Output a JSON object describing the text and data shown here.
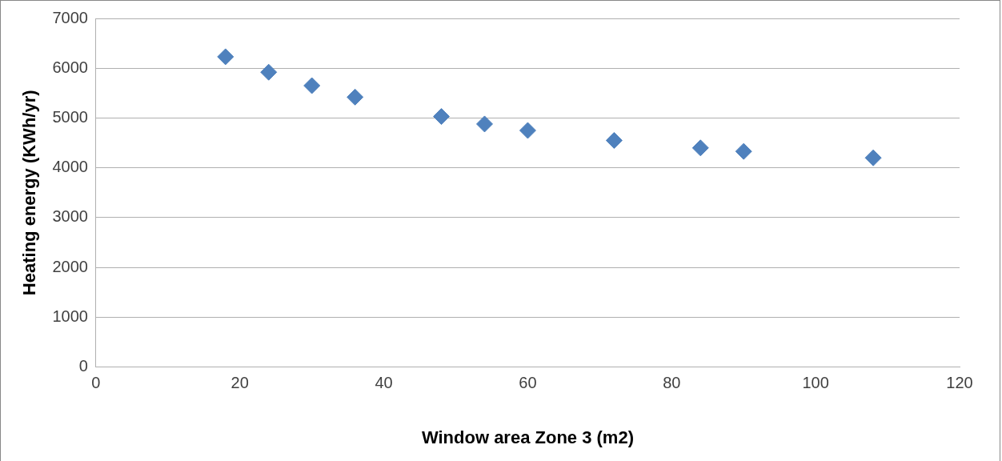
{
  "chart_data": {
    "type": "scatter",
    "xlabel": "Window area Zone 3 (m2)",
    "ylabel": "Heating energy (KWh/yr)",
    "x": [
      18,
      24,
      30,
      36,
      48,
      54,
      60,
      72,
      84,
      90,
      108
    ],
    "series": [
      {
        "color": "#4f81bd",
        "values": [
          6230,
          5920,
          5650,
          5420,
          5030,
          4880,
          4750,
          4550,
          4400,
          4330,
          4200
        ]
      }
    ],
    "xlim": [
      0,
      120
    ],
    "xticks": [
      0,
      20,
      40,
      60,
      80,
      100,
      120
    ],
    "ylim": [
      0,
      7000
    ],
    "yticks": [
      0,
      1000,
      2000,
      3000,
      4000,
      5000,
      6000,
      7000
    ],
    "grid": "y",
    "legend": false,
    "marker": "diamond"
  }
}
